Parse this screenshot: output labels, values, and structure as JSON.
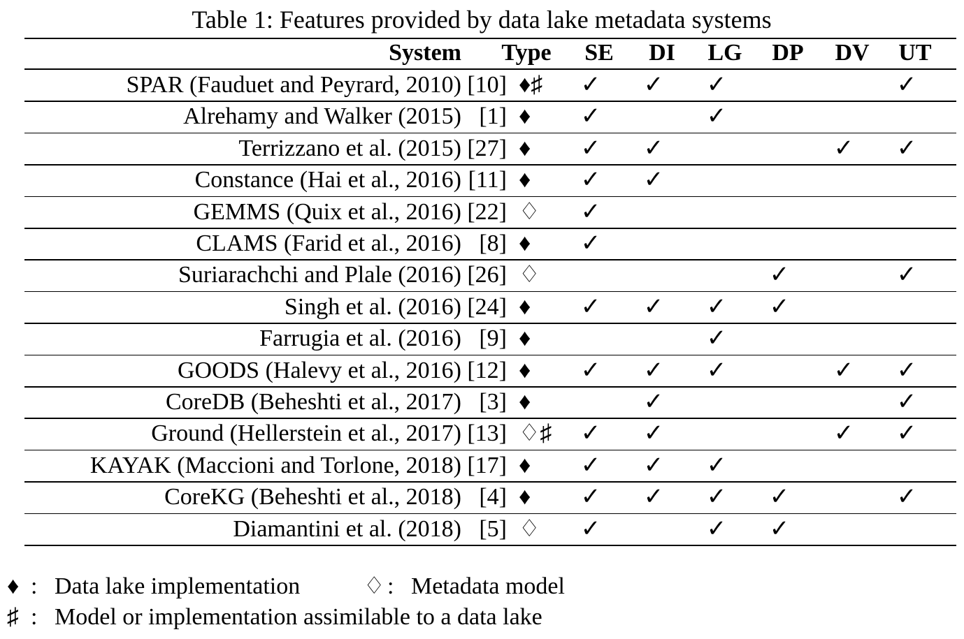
{
  "title": "Table 1: Features provided by data lake metadata systems",
  "table": {
    "header": [
      "System",
      "Type",
      "SE",
      "DI",
      "LG",
      "DP",
      "DV",
      "UT"
    ],
    "rows": [
      {
        "system": "SPAR (Fauduet and Peyrard, 2010)",
        "ref": "[10]",
        "type": "♦♯",
        "checks": [
          "✓",
          "✓",
          "✓",
          null,
          null,
          "✓"
        ]
      },
      {
        "system": "Alrehamy and Walker (2015)",
        "ref": "[1]",
        "type": "♦",
        "checks": [
          "✓",
          null,
          "✓",
          null,
          null,
          null
        ]
      },
      {
        "system": "Terrizzano et al. (2015)",
        "ref": "[27]",
        "type": "♦",
        "checks": [
          "✓",
          "✓",
          null,
          null,
          "✓",
          "✓"
        ]
      },
      {
        "system": "Constance (Hai et al., 2016)",
        "ref": "[11]",
        "type": "♦",
        "checks": [
          "✓",
          "✓",
          null,
          null,
          null,
          null
        ]
      },
      {
        "system": "GEMMS (Quix et al., 2016)",
        "ref": "[22]",
        "type": "♢",
        "checks": [
          "✓",
          null,
          null,
          null,
          null,
          null
        ]
      },
      {
        "system": "CLAMS (Farid et al., 2016)",
        "ref": "[8]",
        "type": "♦",
        "checks": [
          "✓",
          null,
          null,
          null,
          null,
          null
        ]
      },
      {
        "system": "Suriarachchi and Plale (2016)",
        "ref": "[26]",
        "type": "♢",
        "checks": [
          null,
          null,
          null,
          "✓",
          null,
          "✓"
        ]
      },
      {
        "system": "Singh et al. (2016)",
        "ref": "[24]",
        "type": "♦",
        "checks": [
          "✓",
          "✓",
          "✓",
          "✓",
          null,
          null
        ]
      },
      {
        "system": "Farrugia et al. (2016)",
        "ref": "[9]",
        "type": "♦",
        "checks": [
          null,
          null,
          "✓",
          null,
          null,
          null
        ]
      },
      {
        "system": "GOODS (Halevy et al., 2016)",
        "ref": "[12]",
        "type": "♦",
        "checks": [
          "✓",
          "✓",
          "✓",
          null,
          "✓",
          "✓"
        ]
      },
      {
        "system": "CoreDB (Beheshti et al., 2017)",
        "ref": "[3]",
        "type": "♦",
        "checks": [
          null,
          "✓",
          null,
          null,
          null,
          "✓"
        ]
      },
      {
        "system": "Ground (Hellerstein et al., 2017)",
        "ref": "[13]",
        "type": "♢♯",
        "checks": [
          "✓",
          "✓",
          null,
          null,
          "✓",
          "✓"
        ]
      },
      {
        "system": "KAYAK (Maccioni and Torlone, 2018)",
        "ref": "[17]",
        "type": "♦",
        "checks": [
          "✓",
          "✓",
          "✓",
          null,
          null,
          null
        ]
      },
      {
        "system": "CoreKG (Beheshti et al., 2018)",
        "ref": "[4]",
        "type": "♦",
        "checks": [
          "✓",
          "✓",
          "✓",
          "✓",
          null,
          "✓"
        ]
      },
      {
        "system": "Diamantini et al. (2018)",
        "ref": "[5]",
        "type": "♢",
        "checks": [
          "✓",
          null,
          "✓",
          "✓",
          null,
          null
        ]
      }
    ]
  },
  "legend": [
    {
      "symbol": "♦",
      "separator": ":",
      "text": "Data lake implementation"
    },
    {
      "symbol": "♢",
      "separator": ":",
      "text": "Metadata model"
    },
    {
      "symbol": "♯",
      "separator": ":",
      "text": "Model or implementation assimilable to a data lake"
    }
  ]
}
